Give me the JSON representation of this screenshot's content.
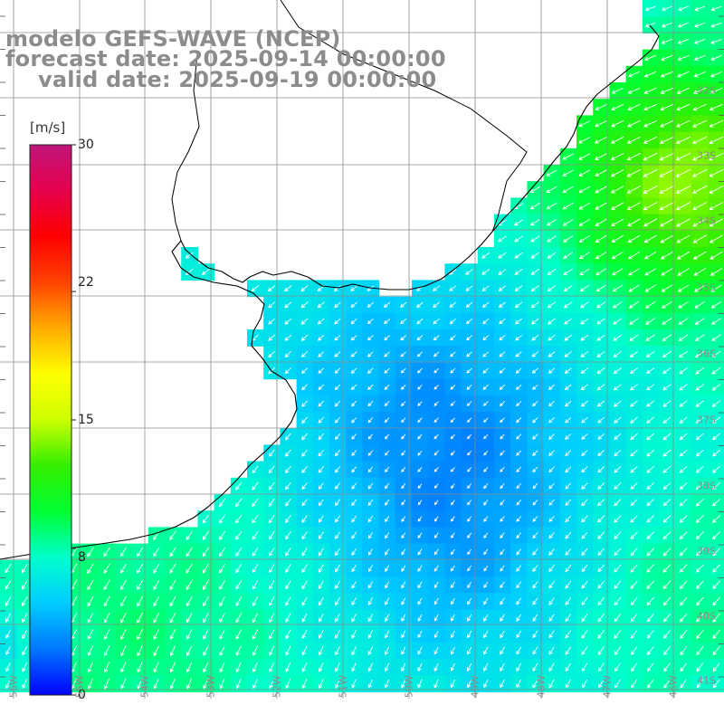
{
  "title": {
    "line1": "modelo GEFS-WAVE (NCEP)",
    "line2": "forecast date: 2025-09-14 00:00:00",
    "line3": "valid date: 2025-09-19 00:00:00"
  },
  "colorbar": {
    "unit": "[m/s]",
    "ticks": [
      "30",
      "22",
      "15",
      "8",
      "0"
    ],
    "tick_values": [
      30,
      22,
      15,
      8,
      0
    ],
    "min": 0,
    "max": 30,
    "colors": [
      "#0000ff",
      "#0077ff",
      "#00ccff",
      "#00ffcc",
      "#00ff33",
      "#33ee00",
      "#ccff00",
      "#ffff00",
      "#ffaa00",
      "#ff4400",
      "#ff0000",
      "#e6004c",
      "#c0157a"
    ]
  },
  "map": {
    "lat_labels": [
      "32S",
      "33S",
      "34S",
      "35S",
      "36S",
      "37S",
      "38S",
      "39S",
      "40S",
      "41S"
    ],
    "lon_labels": [
      "56W",
      "55W",
      "54W",
      "53W",
      "52W",
      "51W",
      "50W",
      "49W",
      "48W",
      "47W",
      "46W"
    ],
    "lon_range": [
      -56,
      -45
    ],
    "lat_range": [
      -41.5,
      -31
    ],
    "land_color": "#ffffff",
    "coast_color": "#000000",
    "grid_color": "#8c8c8c",
    "arrow_color": "#ffffff"
  }
}
